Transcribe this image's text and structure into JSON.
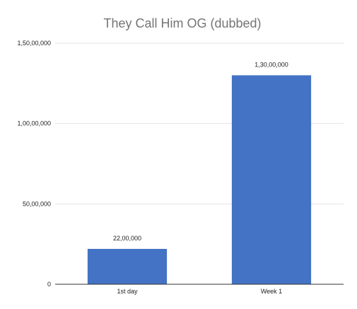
{
  "chart_data": {
    "type": "bar",
    "title": "They Call Him OG (dubbed)",
    "xlabel": "",
    "ylabel": "",
    "categories": [
      "1st day",
      "Week 1"
    ],
    "values": [
      2200000,
      13000000
    ],
    "value_labels": [
      "22,00,000",
      "1,30,00,000"
    ],
    "ylim": [
      0,
      15000000
    ],
    "yticks": [
      0,
      5000000,
      10000000,
      15000000
    ],
    "ytick_labels": [
      "0",
      "50,00,000",
      "1,00,00,000",
      "1,50,00,000"
    ],
    "grid": true,
    "legend": "none",
    "colors": {
      "bar": "#4472c4",
      "title": "#757575",
      "grid": "#e3e3e3",
      "baseline": "#333333"
    }
  }
}
